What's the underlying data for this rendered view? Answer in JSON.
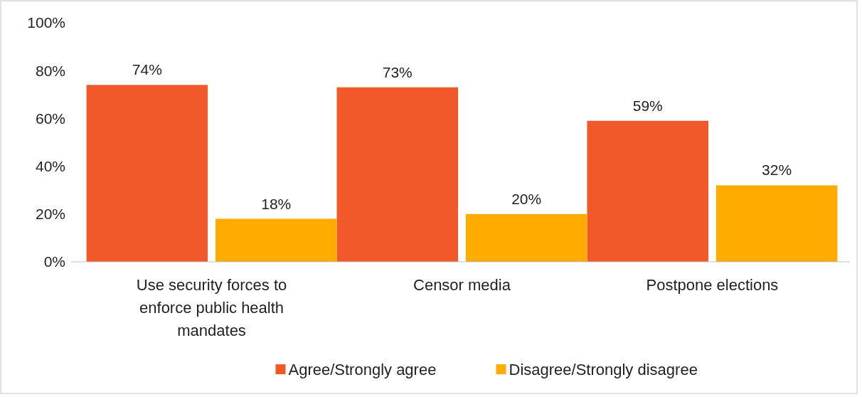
{
  "chart_data": {
    "type": "bar",
    "categories": [
      "Use security forces to enforce public health mandates",
      "Censor media",
      "Postpone elections"
    ],
    "series": [
      {
        "name": "Agree/Strongly agree",
        "color": "#f1592a",
        "values": [
          74,
          73,
          59
        ]
      },
      {
        "name": "Disagree/Strongly disagree",
        "color": "#ffab00",
        "values": [
          18,
          20,
          32
        ]
      }
    ],
    "value_labels": [
      [
        "74%",
        "73%",
        "59%"
      ],
      [
        "18%",
        "20%",
        "32%"
      ]
    ],
    "ylim": [
      0,
      100
    ],
    "yticks": [
      {
        "value": 0,
        "label": "0%"
      },
      {
        "value": 20,
        "label": "20%"
      },
      {
        "value": 40,
        "label": "40%"
      },
      {
        "value": 60,
        "label": "60%"
      },
      {
        "value": 80,
        "label": "80%"
      },
      {
        "value": 100,
        "label": "100%"
      }
    ],
    "grid": false,
    "legend": "bottom"
  }
}
